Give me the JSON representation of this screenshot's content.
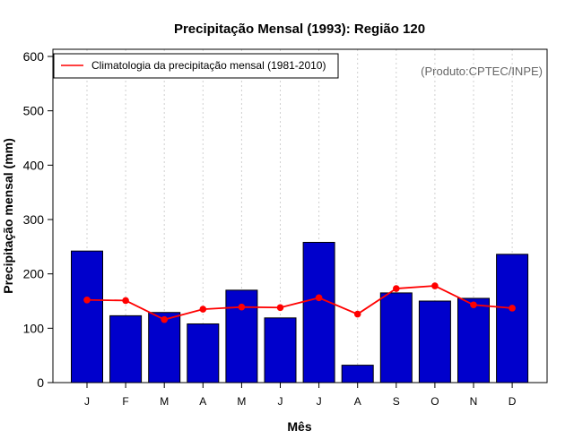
{
  "chart_data": {
    "type": "bar",
    "title": "Precipitação Mensal (1993): Região 120",
    "xlabel": "Mês",
    "ylabel": "Precipitação mensal (mm)",
    "ylim": [
      0,
      600
    ],
    "yticks": [
      0,
      100,
      200,
      300,
      400,
      500,
      600
    ],
    "categories": [
      "J",
      "F",
      "M",
      "A",
      "M",
      "J",
      "J",
      "A",
      "S",
      "O",
      "N",
      "D"
    ],
    "series": [
      {
        "name": "Precipitação mensal (1993)",
        "type": "bar",
        "color": "#0000cc",
        "values": [
          242,
          123,
          129,
          108,
          170,
          119,
          258,
          32,
          165,
          150,
          155,
          236
        ]
      },
      {
        "name": "Climatologia da precipitação mensal (1981-2010)",
        "type": "line",
        "color": "#ff0000",
        "values": [
          152,
          151,
          116,
          135,
          139,
          138,
          156,
          126,
          173,
          178,
          143,
          137
        ]
      }
    ],
    "legend": {
      "position": "top-left",
      "label": "Climatologia da precipitação mensal (1981-2010)"
    },
    "annotation": "(Produto:CPTEC/INPE)",
    "grid": "vertical-dotted"
  }
}
